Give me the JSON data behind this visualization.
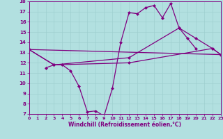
{
  "xlabel": "Windchill (Refroidissement éolien,°C)",
  "bg_color": "#b2e0e0",
  "grid_color": "#9ecfcf",
  "line_color": "#800080",
  "xmin": 0,
  "xmax": 23,
  "ymin": 7,
  "ymax": 18,
  "line_straight": {
    "x": [
      0,
      23
    ],
    "y": [
      13.3,
      12.8
    ]
  },
  "line_upper": {
    "x": [
      0,
      3,
      10,
      12,
      14,
      15,
      16,
      17,
      18,
      19,
      20,
      21,
      22,
      23
    ],
    "y": [
      13.3,
      11.8,
      14.0,
      16.9,
      17.4,
      17.6,
      16.4,
      17.8,
      15.4,
      14.4,
      13.4,
      null,
      null,
      null
    ]
  },
  "line_mid_upper": {
    "x": [
      0,
      3,
      12,
      18,
      20,
      22,
      23
    ],
    "y": [
      13.3,
      11.8,
      12.5,
      15.4,
      14.4,
      13.4,
      12.8
    ]
  },
  "line_mid_lower": {
    "x": [
      0,
      3,
      12,
      22,
      23
    ],
    "y": [
      13.3,
      11.8,
      12.0,
      13.4,
      12.8
    ]
  },
  "line_dip": {
    "x": [
      2,
      3,
      4,
      5,
      6,
      7,
      8,
      9,
      10,
      11,
      12,
      13,
      14,
      15,
      16,
      17,
      18,
      19,
      20
    ],
    "y": [
      11.5,
      11.8,
      11.8,
      11.2,
      9.7,
      7.2,
      7.3,
      6.8,
      9.5,
      14.0,
      16.9,
      16.8,
      17.4,
      17.6,
      16.4,
      17.8,
      15.4,
      14.4,
      13.4
    ]
  }
}
